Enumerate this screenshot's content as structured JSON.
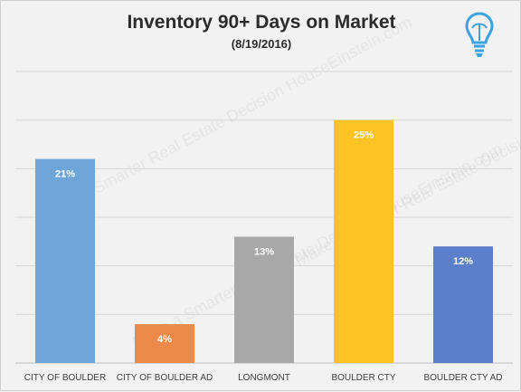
{
  "chart_data": {
    "type": "bar",
    "title": "Inventory 90+ Days on Market",
    "subtitle": "(8/19/2016)",
    "categories": [
      "CITY OF BOULDER",
      "CITY OF BOULDER AD",
      "LONGMONT",
      "BOULDER CTY",
      "BOULDER CTY AD"
    ],
    "values": [
      21,
      4,
      13,
      25,
      12
    ],
    "data_labels": [
      "21%",
      "4%",
      "13%",
      "25%",
      "12%"
    ],
    "colors": [
      "#6fa6d9",
      "#ee8a49",
      "#a8a8a8",
      "#fdc324",
      "#5b7fcb"
    ],
    "ylim": [
      0,
      30
    ],
    "grid": true,
    "legend": "none"
  },
  "logo": {
    "icon": "lightbulb-icon",
    "color": "#3da3e0"
  },
  "watermark": {
    "text": "Make a Smarter Real Estate Decision HouseEinstein.com"
  }
}
